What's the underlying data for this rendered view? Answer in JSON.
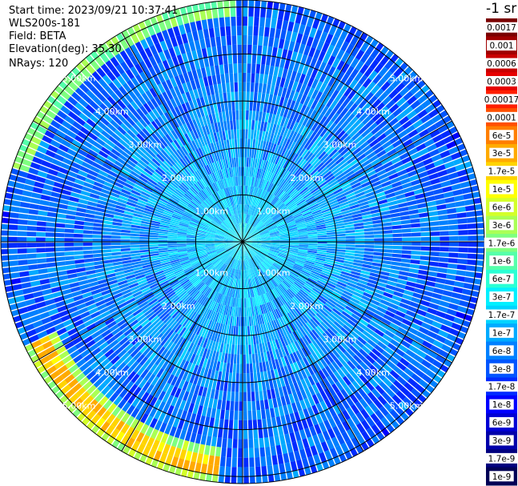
{
  "header": {
    "start_time": "Start time: 2023/09/21 10:37:41",
    "device": "WLS200s-181",
    "field": "Field: BETA",
    "elevation": "Elevation(deg): 35.30",
    "nrays": "NRays: 120"
  },
  "chart_data": {
    "type": "heatmap",
    "projection": "polar-ppi",
    "field": "BETA",
    "nrays": 120,
    "range_rings_km": [
      1,
      2,
      3,
      4,
      5
    ],
    "ring_labels": [
      "1.00km",
      "2.00km",
      "3.00km",
      "4.00km",
      "5.00km"
    ],
    "radial_lines_deg": [
      0,
      30,
      60,
      90,
      120,
      150,
      180,
      210,
      240,
      270,
      300,
      330
    ],
    "grid": true,
    "colorbar": {
      "unit": "-1 sr",
      "position": "right",
      "entries": [
        {
          "label": "0.0017",
          "color": "#7a0000"
        },
        {
          "label": "0.001",
          "color": "#a00000"
        },
        {
          "label": "0.0006",
          "color": "#c80000"
        },
        {
          "label": "0.0003",
          "color": "#e60000"
        },
        {
          "label": "0.00017",
          "color": "#ff1f00"
        },
        {
          "label": "0.0001",
          "color": "#ff5000"
        },
        {
          "label": "6e-5",
          "color": "#ff7e00"
        },
        {
          "label": "3e-5",
          "color": "#ffaa00"
        },
        {
          "label": "1.7e-5",
          "color": "#ffd400"
        },
        {
          "label": "1e-5",
          "color": "#ffff00"
        },
        {
          "label": "6e-6",
          "color": "#d4ff2a"
        },
        {
          "label": "3e-6",
          "color": "#aaff55"
        },
        {
          "label": "1.7e-6",
          "color": "#7fff80"
        },
        {
          "label": "1e-6",
          "color": "#55ffaa"
        },
        {
          "label": "6e-7",
          "color": "#2affd4"
        },
        {
          "label": "3e-7",
          "color": "#00f0ff"
        },
        {
          "label": "1.7e-7",
          "color": "#00d4ff"
        },
        {
          "label": "1e-7",
          "color": "#00aaff"
        },
        {
          "label": "6e-8",
          "color": "#0080ff"
        },
        {
          "label": "3e-8",
          "color": "#0055ff"
        },
        {
          "label": "1.7e-8",
          "color": "#002aff"
        },
        {
          "label": "1e-8",
          "color": "#0000ff"
        },
        {
          "label": "6e-9",
          "color": "#0000d4"
        },
        {
          "label": "3e-9",
          "color": "#0000aa"
        },
        {
          "label": "1.7e-9",
          "color": "#00007f"
        },
        {
          "label": "1e-9",
          "color": "#000055"
        }
      ]
    },
    "high_backscatter_bands": [
      {
        "azimuth_deg": [
          288,
          357
        ],
        "range_km": [
          4.9,
          5.1
        ],
        "level": "3e-5"
      },
      {
        "azimuth_deg": [
          185,
          243
        ],
        "range_km": [
          4.5,
          5.1
        ],
        "level": "6e-5"
      }
    ],
    "background_levels": {
      "near_range": "3e-7",
      "far_range": "3e-8"
    }
  }
}
